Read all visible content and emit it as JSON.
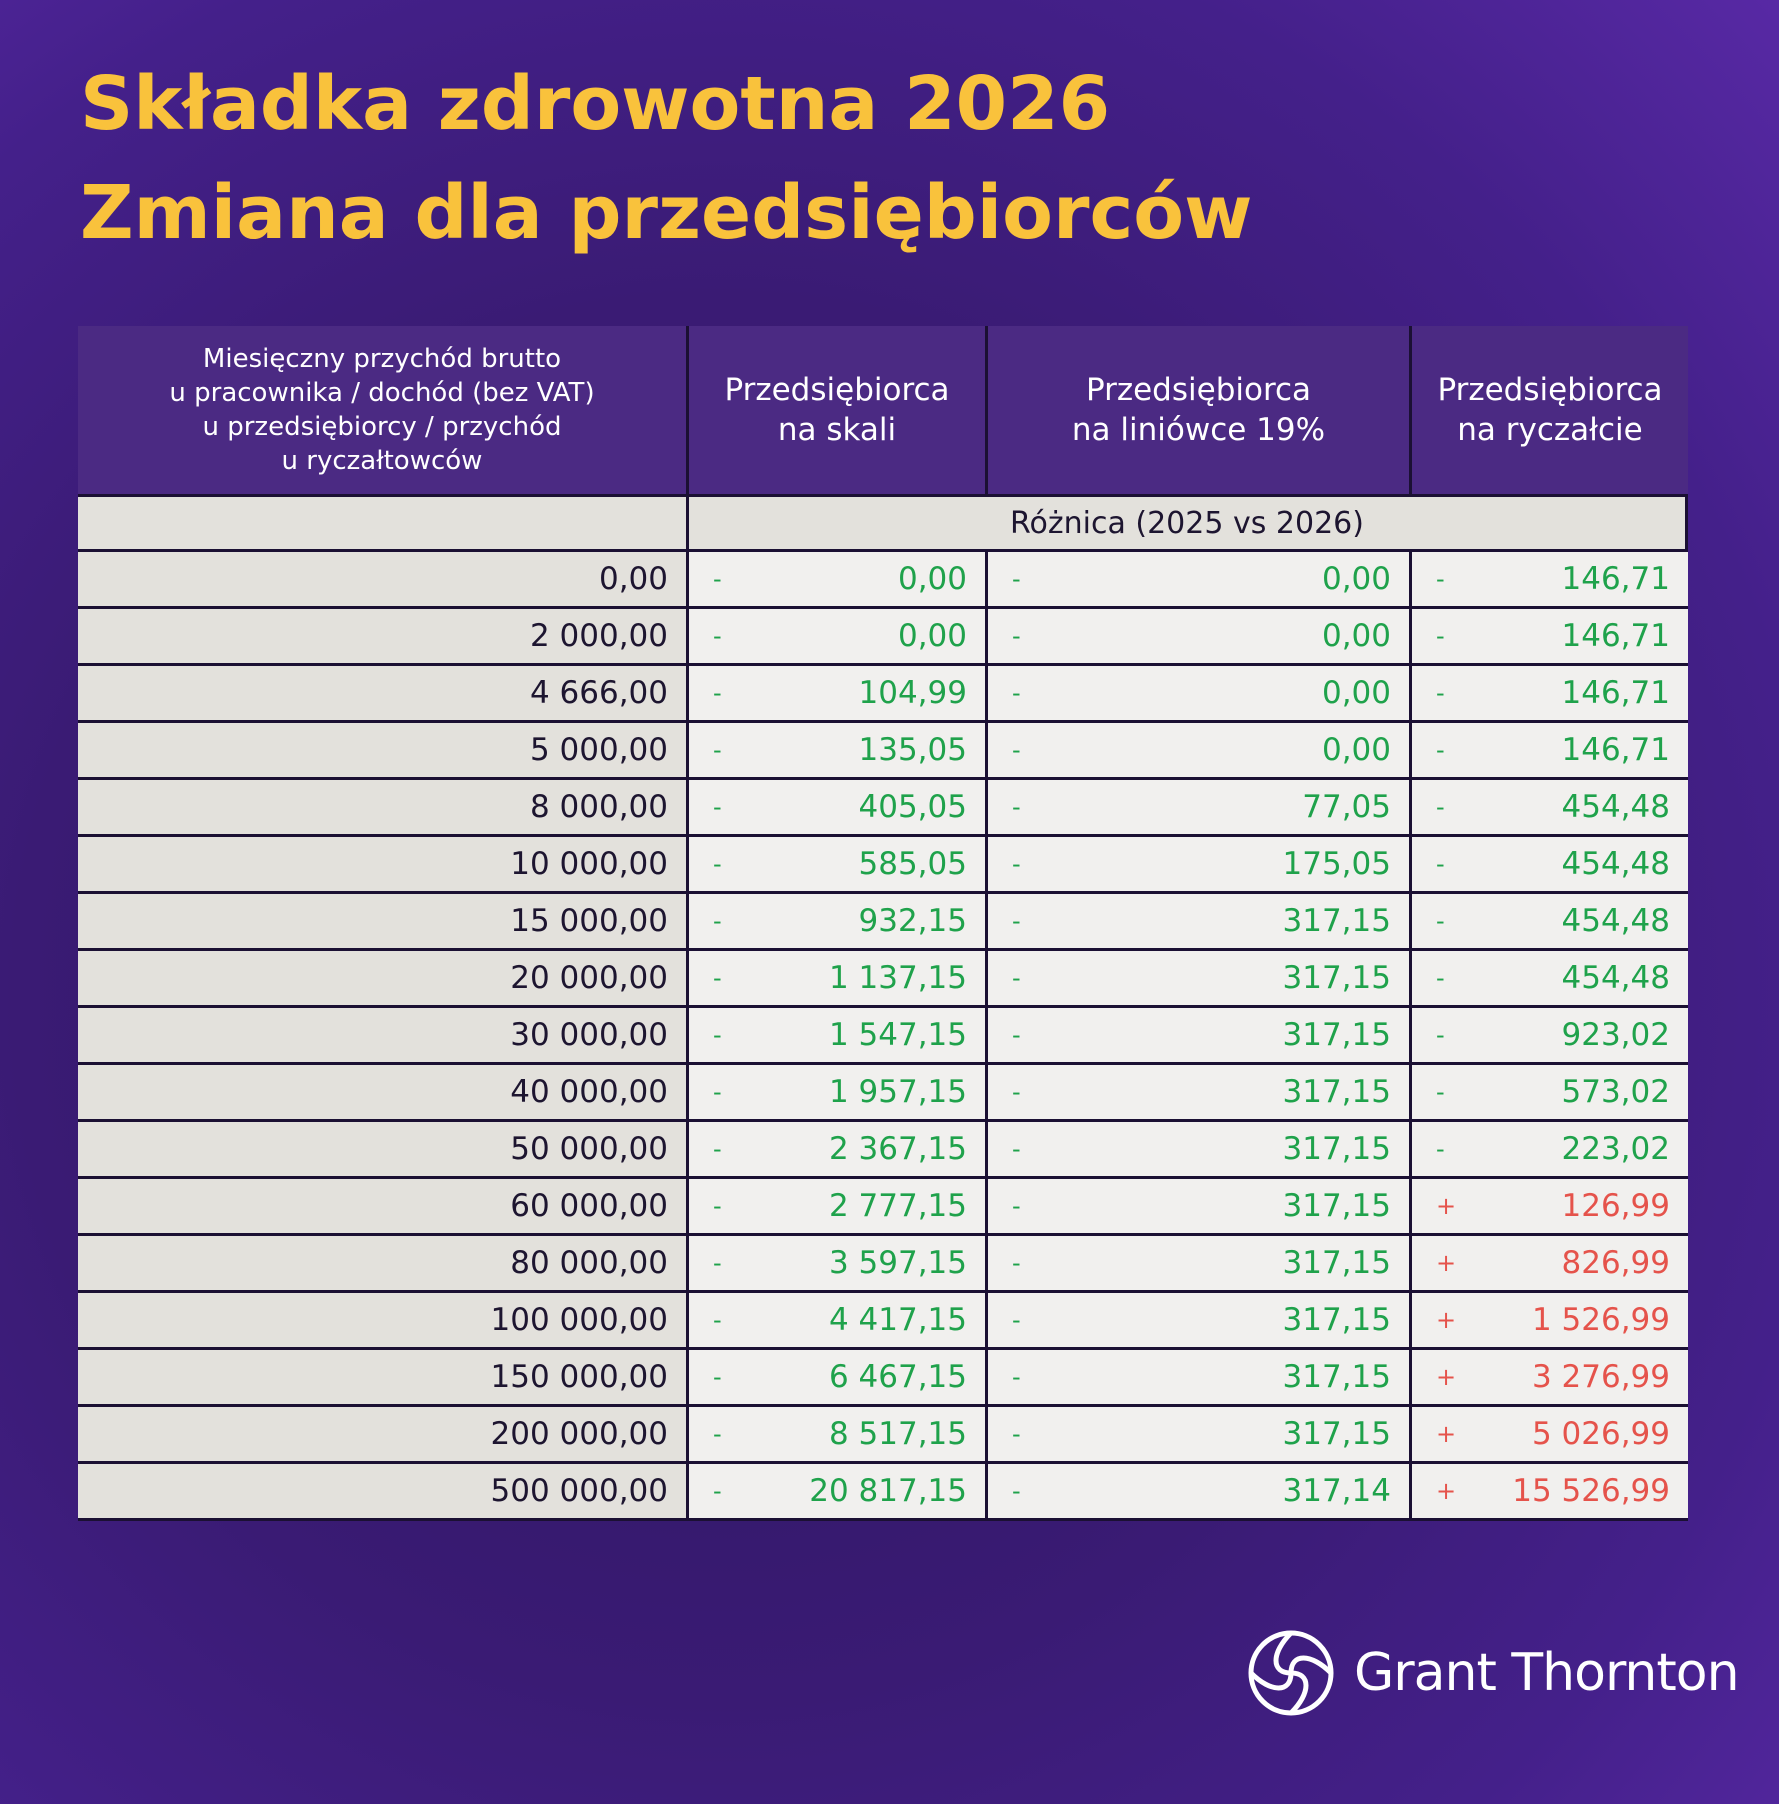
{
  "title_lines": [
    "Składka zdrowotna 2026",
    "Zmiana dla przedsiębiorców"
  ],
  "table": {
    "header": [
      [
        "Miesięczny przychód brutto",
        "u pracownika / dochód (bez VAT)",
        "u przedsiębiorcy / przychód",
        "u ryczałtowców"
      ],
      [
        "Przedsiębiorca",
        "na skali"
      ],
      [
        "Przedsiębiorca",
        "na liniówce 19%"
      ],
      [
        "Przedsiębiorca",
        "na ryczałcie"
      ]
    ],
    "subheader": "Różnica (2025 vs 2026)",
    "rows": [
      {
        "income": "0,00",
        "cells": [
          {
            "sign": "-",
            "value": "0,00",
            "color": "#1fa24b"
          },
          {
            "sign": "-",
            "value": "0,00",
            "color": "#1fa24b"
          },
          {
            "sign": "-",
            "value": "146,71",
            "color": "#1fa24b"
          }
        ]
      },
      {
        "income": "2 000,00",
        "cells": [
          {
            "sign": "-",
            "value": "0,00",
            "color": "#1fa24b"
          },
          {
            "sign": "-",
            "value": "0,00",
            "color": "#1fa24b"
          },
          {
            "sign": "-",
            "value": "146,71",
            "color": "#1fa24b"
          }
        ]
      },
      {
        "income": "4 666,00",
        "cells": [
          {
            "sign": "-",
            "value": "104,99",
            "color": "#1fa24b"
          },
          {
            "sign": "-",
            "value": "0,00",
            "color": "#1fa24b"
          },
          {
            "sign": "-",
            "value": "146,71",
            "color": "#1fa24b"
          }
        ]
      },
      {
        "income": "5 000,00",
        "cells": [
          {
            "sign": "-",
            "value": "135,05",
            "color": "#1fa24b"
          },
          {
            "sign": "-",
            "value": "0,00",
            "color": "#1fa24b"
          },
          {
            "sign": "-",
            "value": "146,71",
            "color": "#1fa24b"
          }
        ]
      },
      {
        "income": "8 000,00",
        "cells": [
          {
            "sign": "-",
            "value": "405,05",
            "color": "#1fa24b"
          },
          {
            "sign": "-",
            "value": "77,05",
            "color": "#1fa24b"
          },
          {
            "sign": "-",
            "value": "454,48",
            "color": "#1fa24b"
          }
        ]
      },
      {
        "income": "10 000,00",
        "cells": [
          {
            "sign": "-",
            "value": "585,05",
            "color": "#1fa24b"
          },
          {
            "sign": "-",
            "value": "175,05",
            "color": "#1fa24b"
          },
          {
            "sign": "-",
            "value": "454,48",
            "color": "#1fa24b"
          }
        ]
      },
      {
        "income": "15 000,00",
        "cells": [
          {
            "sign": "-",
            "value": "932,15",
            "color": "#1fa24b"
          },
          {
            "sign": "-",
            "value": "317,15",
            "color": "#1fa24b"
          },
          {
            "sign": "-",
            "value": "454,48",
            "color": "#1fa24b"
          }
        ]
      },
      {
        "income": "20 000,00",
        "cells": [
          {
            "sign": "-",
            "value": "1 137,15",
            "color": "#1fa24b"
          },
          {
            "sign": "-",
            "value": "317,15",
            "color": "#1fa24b"
          },
          {
            "sign": "-",
            "value": "454,48",
            "color": "#1fa24b"
          }
        ]
      },
      {
        "income": "30 000,00",
        "cells": [
          {
            "sign": "-",
            "value": "1 547,15",
            "color": "#1fa24b"
          },
          {
            "sign": "-",
            "value": "317,15",
            "color": "#1fa24b"
          },
          {
            "sign": "-",
            "value": "923,02",
            "color": "#1fa24b"
          }
        ]
      },
      {
        "income": "40 000,00",
        "cells": [
          {
            "sign": "-",
            "value": "1 957,15",
            "color": "#1fa24b"
          },
          {
            "sign": "-",
            "value": "317,15",
            "color": "#1fa24b"
          },
          {
            "sign": "-",
            "value": "573,02",
            "color": "#1fa24b"
          }
        ]
      },
      {
        "income": "50 000,00",
        "cells": [
          {
            "sign": "-",
            "value": "2 367,15",
            "color": "#1fa24b"
          },
          {
            "sign": "-",
            "value": "317,15",
            "color": "#1fa24b"
          },
          {
            "sign": "-",
            "value": "223,02",
            "color": "#1fa24b"
          }
        ]
      },
      {
        "income": "60 000,00",
        "cells": [
          {
            "sign": "-",
            "value": "2 777,15",
            "color": "#1fa24b"
          },
          {
            "sign": "-",
            "value": "317,15",
            "color": "#1fa24b"
          },
          {
            "sign": "+",
            "value": "126,99",
            "color": "#e5534b"
          }
        ]
      },
      {
        "income": "80 000,00",
        "cells": [
          {
            "sign": "-",
            "value": "3 597,15",
            "color": "#1fa24b"
          },
          {
            "sign": "-",
            "value": "317,15",
            "color": "#1fa24b"
          },
          {
            "sign": "+",
            "value": "826,99",
            "color": "#e5534b"
          }
        ]
      },
      {
        "income": "100 000,00",
        "cells": [
          {
            "sign": "-",
            "value": "4 417,15",
            "color": "#1fa24b"
          },
          {
            "sign": "-",
            "value": "317,15",
            "color": "#1fa24b"
          },
          {
            "sign": "+",
            "value": "1 526,99",
            "color": "#e5534b"
          }
        ]
      },
      {
        "income": "150 000,00",
        "cells": [
          {
            "sign": "-",
            "value": "6 467,15",
            "color": "#1fa24b"
          },
          {
            "sign": "-",
            "value": "317,15",
            "color": "#1fa24b"
          },
          {
            "sign": "+",
            "value": "3 276,99",
            "color": "#e5534b"
          }
        ]
      },
      {
        "income": "200 000,00",
        "cells": [
          {
            "sign": "-",
            "value": "8 517,15",
            "color": "#1fa24b"
          },
          {
            "sign": "-",
            "value": "317,15",
            "color": "#1fa24b"
          },
          {
            "sign": "+",
            "value": "5 026,99",
            "color": "#e5534b"
          }
        ]
      },
      {
        "income": "500 000,00",
        "cells": [
          {
            "sign": "-",
            "value": "20 817,15",
            "color": "#1fa24b"
          },
          {
            "sign": "-",
            "value": "317,14",
            "color": "#1fa24b"
          },
          {
            "sign": "+",
            "value": "15 526,99",
            "color": "#e5534b"
          }
        ]
      }
    ]
  },
  "logo": "Grant Thornton"
}
